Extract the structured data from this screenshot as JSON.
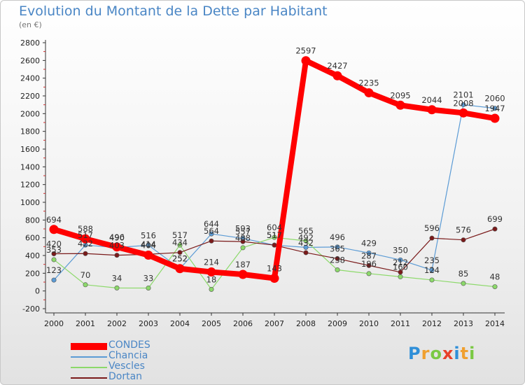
{
  "header": {
    "title": "Evolution du Montant de la Dette par Habitant",
    "unit": "(en €)"
  },
  "chart_data": {
    "type": "line",
    "title": "Evolution du Montant de la Dette par Habitant",
    "subtitle": "(en €)",
    "xlabel": "",
    "ylabel": "",
    "ylim": [
      -200,
      2800
    ],
    "yticks": [
      -200,
      0,
      200,
      400,
      600,
      800,
      1000,
      1200,
      1400,
      1600,
      1800,
      2000,
      2200,
      2400,
      2600,
      2800
    ],
    "grid": false,
    "legend_position": "bottom-left",
    "categories": [
      "2000",
      "2001",
      "2002",
      "2003",
      "2004",
      "2005",
      "2006",
      "2007",
      "2008",
      "2009",
      "2010",
      "2011",
      "2012",
      "2013",
      "2014"
    ],
    "series": [
      {
        "name": "CONDES",
        "color": "#ff0000",
        "values": [
          694,
          588,
          496,
          404,
          252,
          214,
          187,
          143,
          2597,
          2427,
          2235,
          2095,
          2044,
          2008,
          1947
        ],
        "labels": [
          "694",
          "588",
          "496",
          "404",
          "252",
          "214",
          "187",
          "143",
          "2597",
          "2427",
          "2235",
          "2095",
          "2044",
          "2008",
          "1947"
        ]
      },
      {
        "name": "Chancia",
        "color": "#5b9bd5",
        "values": [
          123,
          517,
          490,
          516,
          252,
          644,
          593,
          517,
          492,
          496,
          429,
          350,
          235,
          2101,
          2060
        ],
        "labels": [
          "123",
          "517",
          "490",
          "516",
          "252",
          "644",
          "593",
          "517",
          "492",
          "496",
          "429",
          "350",
          "235",
          "2101",
          "2060"
        ]
      },
      {
        "name": "Vescles",
        "color": "#8cd96a",
        "values": [
          353,
          70,
          34,
          33,
          517,
          18,
          488,
          604,
          565,
          238,
          196,
          160,
          124,
          85,
          48
        ],
        "labels": [
          "353",
          "70",
          "34",
          "33",
          "517",
          "18",
          "488",
          "604",
          "565",
          "238",
          "196",
          "160",
          "124",
          "85",
          "48"
        ]
      },
      {
        "name": "Dortan",
        "color": "#7a1a1a",
        "values": [
          420,
          422,
          403,
          414,
          434,
          564,
          557,
          517,
          432,
          365,
          287,
          212,
          596,
          576,
          699
        ],
        "labels": [
          "420",
          "422",
          "403",
          "414",
          "434",
          "564",
          "557",
          "517",
          "432",
          "365",
          "287",
          "212",
          "596",
          "576",
          "699"
        ]
      }
    ]
  },
  "legend": [
    {
      "label": "CONDES",
      "color": "#ff0000"
    },
    {
      "label": "Chancia",
      "color": "#5b9bd5"
    },
    {
      "label": "Vescles",
      "color": "#8cd96a"
    },
    {
      "label": "Dortan",
      "color": "#7a1a1a"
    }
  ],
  "logo": {
    "letters": [
      "P",
      "r",
      "o",
      "x",
      "i",
      "t",
      "i"
    ],
    "colors": [
      "#2f8fd8",
      "#f0a030",
      "#7ac943",
      "#e8402a",
      "#2f8fd8",
      "#f0a030",
      "#7ac943"
    ]
  }
}
